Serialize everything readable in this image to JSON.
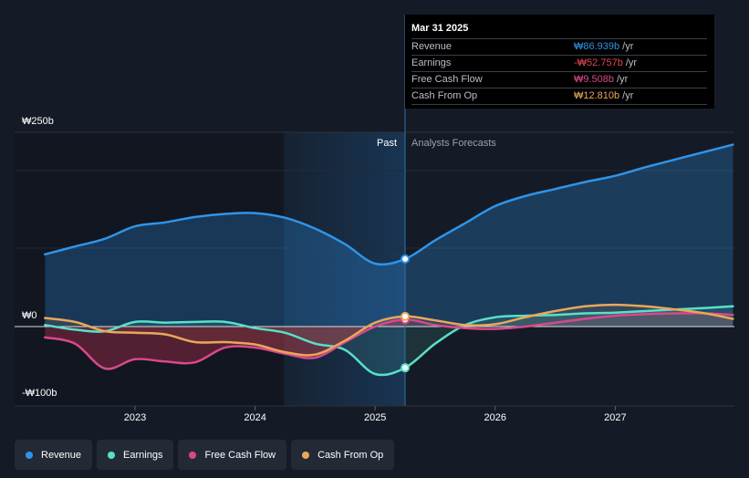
{
  "chart_data": {
    "type": "line",
    "x_ticks": [
      "2023",
      "2024",
      "2025",
      "2026",
      "2027"
    ],
    "y_ticks": [
      {
        "label": "₩250b",
        "value": 250
      },
      {
        "label": "₩0",
        "value": 0
      },
      {
        "label": "-₩100b",
        "value": -100
      }
    ],
    "ylim": [
      -100,
      250
    ],
    "xlim": [
      2022.25,
      2027.98
    ],
    "divider_x": 2025.25,
    "forecast_shade_start": 2024.25,
    "past_label": "Past",
    "forecast_label": "Analysts Forecasts",
    "series": [
      {
        "name": "Revenue",
        "color": "#2f94e8",
        "fill": true,
        "points": [
          [
            2022.25,
            93
          ],
          [
            2022.5,
            103
          ],
          [
            2022.75,
            113
          ],
          [
            2023.0,
            129
          ],
          [
            2023.25,
            134
          ],
          [
            2023.5,
            141
          ],
          [
            2023.75,
            145
          ],
          [
            2024.0,
            146
          ],
          [
            2024.25,
            140
          ],
          [
            2024.5,
            126
          ],
          [
            2024.75,
            106
          ],
          [
            2025.0,
            81
          ],
          [
            2025.25,
            87
          ],
          [
            2025.5,
            111
          ],
          [
            2025.75,
            133
          ],
          [
            2026.0,
            155
          ],
          [
            2026.25,
            168
          ],
          [
            2026.5,
            177
          ],
          [
            2026.75,
            186
          ],
          [
            2027.0,
            194
          ],
          [
            2027.25,
            205
          ],
          [
            2027.5,
            215
          ],
          [
            2027.75,
            225
          ],
          [
            2027.98,
            234
          ]
        ],
        "marker": [
          2025.25,
          87
        ]
      },
      {
        "name": "Earnings",
        "color": "#58e0c9",
        "fill": false,
        "points": [
          [
            2022.25,
            2
          ],
          [
            2022.5,
            -4
          ],
          [
            2022.75,
            -6
          ],
          [
            2023.0,
            6
          ],
          [
            2023.25,
            5
          ],
          [
            2023.5,
            6
          ],
          [
            2023.75,
            6
          ],
          [
            2024.0,
            -2
          ],
          [
            2024.25,
            -8
          ],
          [
            2024.5,
            -22
          ],
          [
            2024.75,
            -30
          ],
          [
            2025.0,
            -61
          ],
          [
            2025.25,
            -53
          ],
          [
            2025.5,
            -22
          ],
          [
            2025.75,
            2
          ],
          [
            2026.0,
            12
          ],
          [
            2026.25,
            14
          ],
          [
            2026.5,
            15
          ],
          [
            2026.75,
            17
          ],
          [
            2027.0,
            18
          ],
          [
            2027.25,
            20
          ],
          [
            2027.5,
            22
          ],
          [
            2027.75,
            24
          ],
          [
            2027.98,
            26
          ]
        ],
        "marker": [
          2025.25,
          -53
        ]
      },
      {
        "name": "Free Cash Flow",
        "color": "#d9488b",
        "fill": false,
        "points": [
          [
            2022.25,
            -14
          ],
          [
            2022.5,
            -22
          ],
          [
            2022.75,
            -54
          ],
          [
            2023.0,
            -42
          ],
          [
            2023.25,
            -45
          ],
          [
            2023.5,
            -46
          ],
          [
            2023.75,
            -27
          ],
          [
            2024.0,
            -27
          ],
          [
            2024.25,
            -35
          ],
          [
            2024.5,
            -40
          ],
          [
            2024.75,
            -20
          ],
          [
            2025.0,
            0
          ],
          [
            2025.25,
            9
          ],
          [
            2025.5,
            2
          ],
          [
            2025.75,
            -2
          ],
          [
            2026.0,
            -3
          ],
          [
            2026.25,
            0
          ],
          [
            2026.5,
            5
          ],
          [
            2026.75,
            10
          ],
          [
            2027.0,
            14
          ],
          [
            2027.25,
            16
          ],
          [
            2027.5,
            17
          ],
          [
            2027.75,
            17
          ],
          [
            2027.98,
            15
          ]
        ],
        "marker": [
          2025.25,
          9
        ]
      },
      {
        "name": "Cash From Op",
        "color": "#e9a75b",
        "fill": false,
        "points": [
          [
            2022.25,
            11
          ],
          [
            2022.5,
            6
          ],
          [
            2022.75,
            -6
          ],
          [
            2023.0,
            -8
          ],
          [
            2023.25,
            -10
          ],
          [
            2023.5,
            -20
          ],
          [
            2023.75,
            -20
          ],
          [
            2024.0,
            -23
          ],
          [
            2024.25,
            -33
          ],
          [
            2024.5,
            -36
          ],
          [
            2024.75,
            -18
          ],
          [
            2025.0,
            5
          ],
          [
            2025.25,
            13
          ],
          [
            2025.5,
            8
          ],
          [
            2025.75,
            2
          ],
          [
            2026.0,
            3
          ],
          [
            2026.25,
            12
          ],
          [
            2026.5,
            20
          ],
          [
            2026.75,
            26
          ],
          [
            2027.0,
            28
          ],
          [
            2027.25,
            26
          ],
          [
            2027.5,
            22
          ],
          [
            2027.75,
            17
          ],
          [
            2027.98,
            10
          ]
        ],
        "marker": [
          2025.25,
          13
        ]
      }
    ]
  },
  "tooltip": {
    "date": "Mar 31 2025",
    "rows": [
      {
        "label": "Revenue",
        "value": "₩86.939b",
        "unit": "/yr",
        "color": "#2f94e8"
      },
      {
        "label": "Earnings",
        "value": "-₩52.757b",
        "unit": "/yr",
        "color": "#e0474f"
      },
      {
        "label": "Free Cash Flow",
        "value": "₩9.508b",
        "unit": "/yr",
        "color": "#d9488b"
      },
      {
        "label": "Cash From Op",
        "value": "₩12.810b",
        "unit": "/yr",
        "color": "#e9a75b"
      }
    ]
  },
  "legend": [
    {
      "label": "Revenue",
      "color": "#2f94e8"
    },
    {
      "label": "Earnings",
      "color": "#58e0c9"
    },
    {
      "label": "Free Cash Flow",
      "color": "#d9488b"
    },
    {
      "label": "Cash From Op",
      "color": "#e9a75b"
    }
  ]
}
